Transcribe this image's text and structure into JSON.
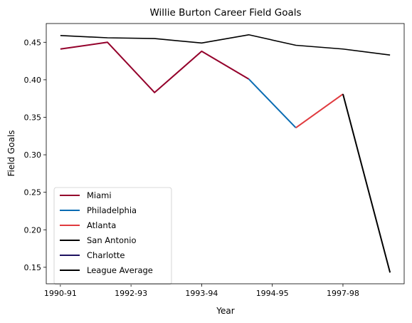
{
  "chart_data": {
    "type": "line",
    "title": "Willie Burton Career Field Goals",
    "xlabel": "Year",
    "ylabel": "Field Goals",
    "xlim": [
      -0.3,
      7.3
    ],
    "ylim": [
      0.128,
      0.475
    ],
    "x_tick_labels": [
      {
        "x": 0,
        "label": "1990-91"
      },
      {
        "x": 1.5,
        "label": "1992-93"
      },
      {
        "x": 3,
        "label": "1993-94"
      },
      {
        "x": 4.5,
        "label": "1994-95"
      },
      {
        "x": 6,
        "label": "1997-98"
      }
    ],
    "y_ticks": [
      0.15,
      0.2,
      0.25,
      0.3,
      0.35,
      0.4,
      0.45
    ],
    "y_tick_labels": [
      "0.15",
      "0.20",
      "0.25",
      "0.30",
      "0.35",
      "0.40",
      "0.45"
    ],
    "legend_position": "lower-left",
    "series": [
      {
        "name": "Miami",
        "color": "#94002b",
        "points": [
          [
            0,
            0.441
          ],
          [
            1,
            0.45
          ],
          [
            2,
            0.383
          ],
          [
            3,
            0.438
          ],
          [
            4,
            0.401
          ]
        ]
      },
      {
        "name": "Philadelphia",
        "color": "#0a6cb3",
        "points": [
          [
            4,
            0.401
          ],
          [
            5,
            0.336
          ]
        ]
      },
      {
        "name": "Atlanta",
        "color": "#e03a3e",
        "points": [
          [
            5,
            0.336
          ],
          [
            6,
            0.381
          ]
        ]
      },
      {
        "name": "San Antonio",
        "color": "#000000",
        "points": [
          [
            6,
            0.381
          ],
          [
            7,
            0.143
          ]
        ]
      },
      {
        "name": "Charlotte",
        "color": "#1d1160",
        "points": [
          [
            7,
            0.143
          ]
        ]
      },
      {
        "name": "League Average",
        "color": "#000000",
        "points": [
          [
            0,
            0.459
          ],
          [
            1,
            0.456
          ],
          [
            2,
            0.455
          ],
          [
            3,
            0.449
          ],
          [
            4,
            0.46
          ],
          [
            5,
            0.446
          ],
          [
            6,
            0.441
          ],
          [
            7,
            0.433
          ]
        ]
      }
    ]
  }
}
